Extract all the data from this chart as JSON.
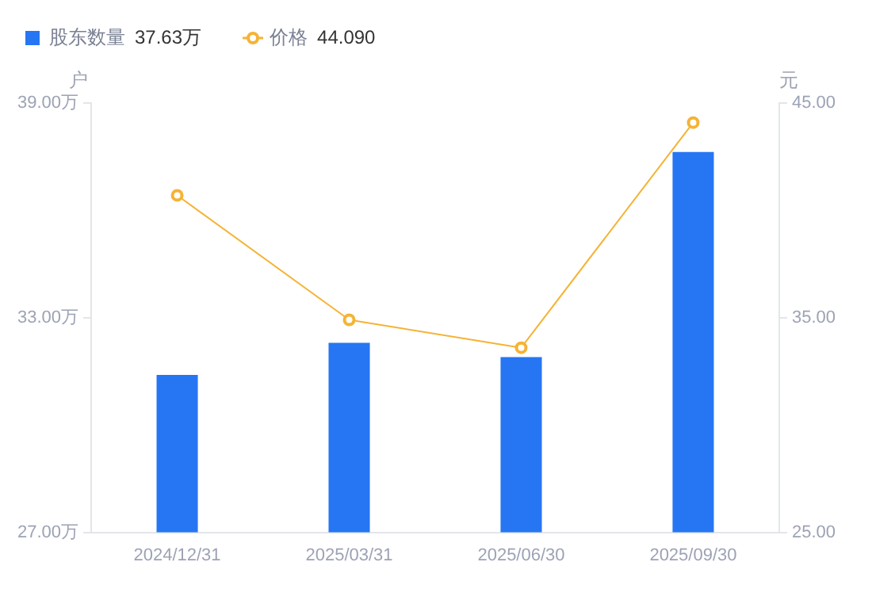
{
  "chart_data": {
    "type": "bar",
    "categories": [
      "2024/12/31",
      "2025/03/31",
      "2025/06/30",
      "2025/09/30"
    ],
    "series": [
      {
        "name": "股东数量",
        "color": "#2676f3",
        "values": [
          31.4,
          32.3,
          31.9,
          37.63
        ]
      },
      {
        "name": "价格",
        "type": "line",
        "axis": "y2",
        "color": "#f5b335",
        "values": [
          40.7,
          34.9,
          33.6,
          44.09
        ]
      }
    ],
    "annotations": [
      "37.63万",
      "44.090"
    ],
    "ylabel": "户",
    "y2label": "元",
    "ylim": [
      27,
      39
    ],
    "yticks": [
      {
        "value": 27,
        "label": "27.00万"
      },
      {
        "value": 33,
        "label": "33.00万"
      },
      {
        "value": 39,
        "label": "39.00万"
      }
    ],
    "y2lim": [
      25,
      45
    ],
    "y2ticks": [
      {
        "value": 25,
        "label": "25.00"
      },
      {
        "value": 35,
        "label": "35.00"
      },
      {
        "value": 45,
        "label": "45.00"
      }
    ],
    "legend": "top left",
    "marker": "circle",
    "grid": false
  }
}
